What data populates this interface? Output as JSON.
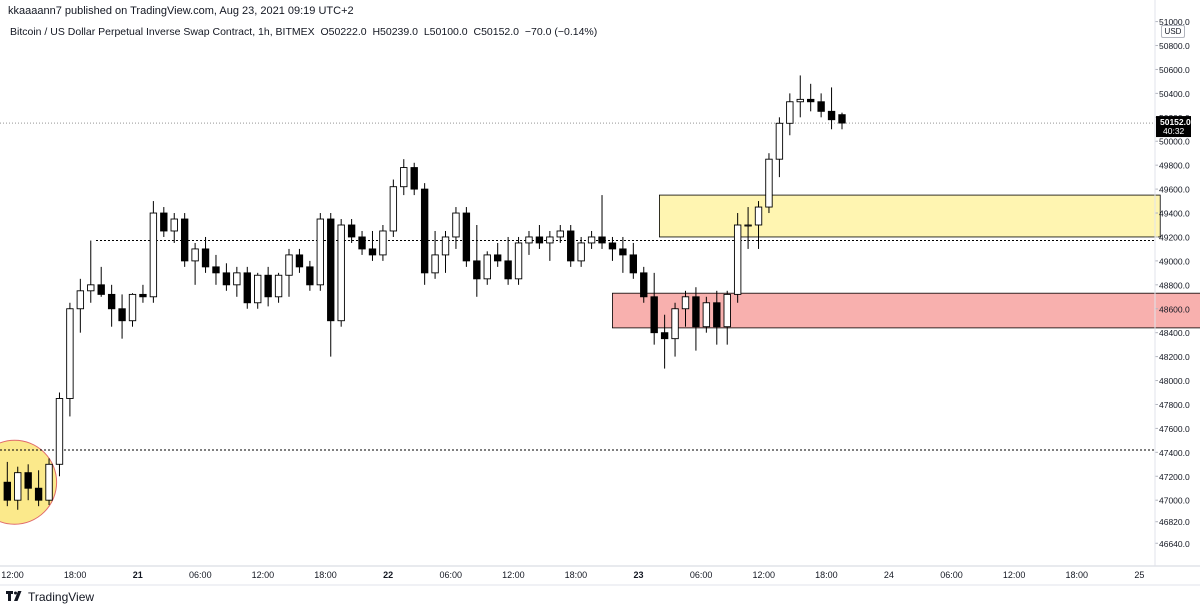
{
  "header": {
    "publisher": "kkaaaann7 published on TradingView.com, Aug 23, 2021 09:19 UTC+2",
    "symbol": "Bitcoin / US Dollar Perpetual Inverse Swap Contract, 1h, BITMEX",
    "open": "O50222.0",
    "high": "H50239.0",
    "low": "L50100.0",
    "close": "C50152.0",
    "change": "−70.0 (−0.14%)",
    "currency": "USD"
  },
  "footer": {
    "brand": "TradingView"
  },
  "colors": {
    "up_candle": "#ffffff",
    "down_candle": "#000000",
    "yellow_zone": "#fff5b1",
    "red_zone": "#f8b0ae",
    "circle": "#fbe98b",
    "dotted_line": "#000000",
    "axis_text": "#131722"
  },
  "chart_data": {
    "type": "candlestick",
    "timeframe": "1h",
    "y_axis": {
      "ticks": [
        51000,
        50800,
        50600,
        50400,
        50200,
        50000,
        49800,
        49600,
        49400,
        49200,
        49000,
        48800,
        48600,
        48400,
        48200,
        48000,
        47800,
        47600,
        47400,
        47200,
        47000,
        46820,
        46640
      ],
      "tick_labels": [
        "51000.0",
        "50800.0",
        "50600.0",
        "50400.0",
        "50200.0",
        "50000.0",
        "49800.0",
        "49600.0",
        "49400.0",
        "49200.0",
        "49000.0",
        "48800.0",
        "48600.0",
        "48400.0",
        "48200.0",
        "48000.0",
        "47800.0",
        "47600.0",
        "47400.0",
        "47200.0",
        "47000.0",
        "46820.0",
        "46640.0"
      ],
      "range": [
        46450,
        51030
      ]
    },
    "x_axis": {
      "tick_labels": [
        "12:00",
        "18:00",
        "21",
        "06:00",
        "12:00",
        "18:00",
        "22",
        "06:00",
        "12:00",
        "18:00",
        "23",
        "06:00",
        "12:00",
        "18:00",
        "24",
        "06:00",
        "12:00",
        "18:00",
        "25"
      ],
      "tick_hours": [
        0,
        6,
        12,
        18,
        24,
        30,
        36,
        42,
        48,
        54,
        60,
        66,
        72,
        78,
        84,
        90,
        96,
        102,
        108
      ],
      "bold_labels": [
        "21",
        "22",
        "23"
      ],
      "range_hours": [
        -1.2,
        109.5
      ]
    },
    "last_price": {
      "value": 50152,
      "label": "50152.0",
      "countdown": "40:32"
    },
    "horizontal_levels": [
      49170,
      47420
    ],
    "zones": [
      {
        "name": "yellow",
        "x0": 62,
        "x1": 110,
        "y_low": 49200,
        "y_high": 49550
      },
      {
        "name": "red",
        "x0": 57.5,
        "x1": 119,
        "y_low": 48440,
        "y_high": 48730
      }
    ],
    "candles": [
      [
        -0.5,
        47150,
        47320,
        46950,
        47000
      ],
      [
        0.5,
        47000,
        47280,
        46920,
        47230
      ],
      [
        1.5,
        47230,
        47300,
        47000,
        47100
      ],
      [
        2.5,
        47100,
        47250,
        46950,
        47000
      ],
      [
        3.5,
        47000,
        47350,
        46960,
        47300
      ],
      [
        4.5,
        47300,
        47900,
        47200,
        47850
      ],
      [
        5.5,
        47850,
        48650,
        47700,
        48600
      ],
      [
        6.5,
        48600,
        48850,
        48400,
        48750
      ],
      [
        7.5,
        48750,
        49170,
        48650,
        48800
      ],
      [
        8.5,
        48800,
        48950,
        48700,
        48720
      ],
      [
        9.5,
        48720,
        48800,
        48450,
        48600
      ],
      [
        10.5,
        48600,
        48720,
        48350,
        48500
      ],
      [
        11.5,
        48500,
        48730,
        48450,
        48720
      ],
      [
        12.5,
        48720,
        48800,
        48650,
        48700
      ],
      [
        13.5,
        48700,
        49500,
        48650,
        49400
      ],
      [
        14.5,
        49400,
        49450,
        49200,
        49250
      ],
      [
        15.5,
        49250,
        49400,
        49150,
        49350
      ],
      [
        16.5,
        49350,
        49400,
        48950,
        49000
      ],
      [
        17.5,
        49000,
        49150,
        48800,
        49100
      ],
      [
        18.5,
        49100,
        49200,
        48900,
        48950
      ],
      [
        19.5,
        48950,
        49050,
        48800,
        48900
      ],
      [
        20.5,
        48900,
        48980,
        48750,
        48800
      ],
      [
        21.5,
        48800,
        48950,
        48700,
        48900
      ],
      [
        22.5,
        48900,
        48950,
        48600,
        48650
      ],
      [
        23.5,
        48650,
        48900,
        48600,
        48880
      ],
      [
        24.5,
        48880,
        48950,
        48620,
        48700
      ],
      [
        25.5,
        48700,
        48900,
        48650,
        48880
      ],
      [
        26.5,
        48880,
        49100,
        48700,
        49050
      ],
      [
        27.5,
        49050,
        49100,
        48900,
        48950
      ],
      [
        28.5,
        48950,
        49000,
        48750,
        48800
      ],
      [
        29.5,
        48800,
        49400,
        48750,
        49350
      ],
      [
        30.5,
        49350,
        49400,
        48200,
        48500
      ],
      [
        31.5,
        48500,
        49350,
        48450,
        49300
      ],
      [
        32.5,
        49300,
        49350,
        49150,
        49200
      ],
      [
        33.5,
        49200,
        49250,
        49050,
        49100
      ],
      [
        34.5,
        49100,
        49250,
        49000,
        49050
      ],
      [
        35.5,
        49050,
        49300,
        49000,
        49250
      ],
      [
        36.5,
        49250,
        49680,
        49200,
        49620
      ],
      [
        37.5,
        49620,
        49850,
        49550,
        49780
      ],
      [
        38.5,
        49780,
        49820,
        49550,
        49600
      ],
      [
        39.5,
        49600,
        49650,
        48800,
        48900
      ],
      [
        40.5,
        48900,
        49250,
        48850,
        49050
      ],
      [
        41.5,
        49050,
        49250,
        48900,
        49200
      ],
      [
        42.5,
        49200,
        49450,
        49100,
        49400
      ],
      [
        43.5,
        49400,
        49450,
        48950,
        49000
      ],
      [
        44.5,
        49000,
        49300,
        48700,
        48850
      ],
      [
        45.5,
        48850,
        49080,
        48800,
        49050
      ],
      [
        46.5,
        49050,
        49150,
        48950,
        49000
      ],
      [
        47.5,
        49000,
        49200,
        48800,
        48850
      ],
      [
        48.5,
        48850,
        49200,
        48800,
        49150
      ],
      [
        49.5,
        49150,
        49250,
        49050,
        49200
      ],
      [
        50.5,
        49200,
        49300,
        49100,
        49150
      ],
      [
        51.5,
        49150,
        49250,
        49000,
        49200
      ],
      [
        52.5,
        49200,
        49300,
        49150,
        49250
      ],
      [
        53.5,
        49250,
        49300,
        48950,
        49000
      ],
      [
        54.5,
        49000,
        49200,
        48950,
        49150
      ],
      [
        55.5,
        49150,
        49250,
        49100,
        49200
      ],
      [
        56.5,
        49200,
        49550,
        49100,
        49150
      ],
      [
        57.5,
        49150,
        49200,
        49000,
        49100
      ],
      [
        58.5,
        49100,
        49200,
        48900,
        49050
      ],
      [
        59.5,
        49050,
        49150,
        48850,
        48900
      ],
      [
        60.5,
        48900,
        48950,
        48650,
        48700
      ],
      [
        61.5,
        48700,
        48900,
        48300,
        48400
      ],
      [
        62.5,
        48400,
        48550,
        48100,
        48350
      ],
      [
        63.5,
        48350,
        48650,
        48200,
        48600
      ],
      [
        64.5,
        48600,
        48750,
        48450,
        48700
      ],
      [
        65.5,
        48700,
        48780,
        48250,
        48450
      ],
      [
        66.5,
        48450,
        48700,
        48400,
        48650
      ],
      [
        67.5,
        48650,
        48750,
        48300,
        48450
      ],
      [
        68.5,
        48450,
        48750,
        48300,
        48720
      ],
      [
        69.5,
        48720,
        49400,
        48650,
        49300
      ],
      [
        70.5,
        49300,
        49450,
        49100,
        49300
      ],
      [
        71.5,
        49300,
        49500,
        49100,
        49450
      ],
      [
        72.5,
        49450,
        49900,
        49400,
        49850
      ],
      [
        73.5,
        49850,
        50200,
        49700,
        50150
      ],
      [
        74.5,
        50150,
        50400,
        50050,
        50330
      ],
      [
        75.5,
        50330,
        50550,
        50200,
        50350
      ],
      [
        76.5,
        50350,
        50480,
        50250,
        50330
      ],
      [
        77.5,
        50330,
        50400,
        50200,
        50250
      ],
      [
        78.5,
        50250,
        50450,
        50100,
        50180
      ],
      [
        79.5,
        50222,
        50239,
        50100,
        50152
      ]
    ]
  }
}
